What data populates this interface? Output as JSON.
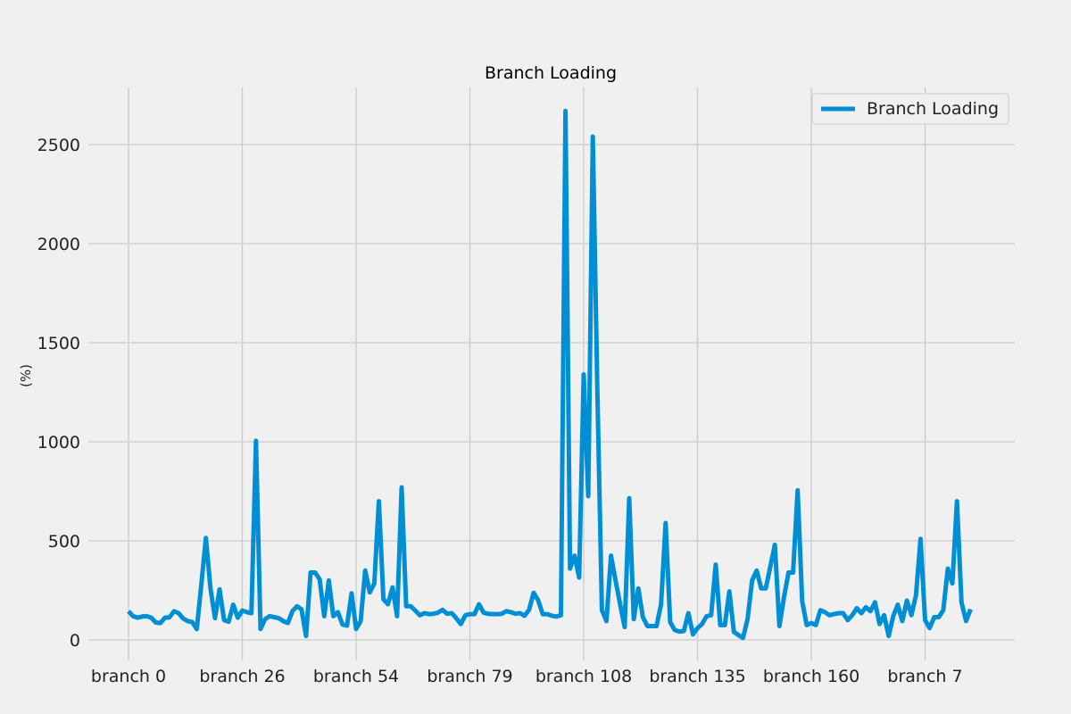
{
  "chart_data": {
    "type": "line",
    "title": "Branch Loading",
    "xlabel": "",
    "ylabel": "(%)",
    "ylim": [
      -100,
      2800
    ],
    "yticks": [
      0,
      500,
      1000,
      1500,
      2000,
      2500
    ],
    "xticks": [
      {
        "index": 0,
        "label": "branch 0"
      },
      {
        "index": 25,
        "label": "branch 26"
      },
      {
        "index": 50,
        "label": "branch 54"
      },
      {
        "index": 75,
        "label": "branch 79"
      },
      {
        "index": 100,
        "label": "branch 108"
      },
      {
        "index": 125,
        "label": "branch 135"
      },
      {
        "index": 150,
        "label": "branch 160"
      },
      {
        "index": 175,
        "label": "branch 7"
      }
    ],
    "grid": true,
    "legend_position": "top-right",
    "series": [
      {
        "name": "Branch Loading",
        "color": "#008fd5",
        "values": [
          145,
          120,
          112,
          118,
          120,
          112,
          88,
          85,
          112,
          114,
          145,
          135,
          108,
          95,
          90,
          55,
          280,
          515,
          260,
          110,
          255,
          100,
          92,
          178,
          112,
          148,
          140,
          135,
          1005,
          55,
          105,
          120,
          115,
          110,
          95,
          85,
          145,
          170,
          155,
          20,
          340,
          340,
          305,
          120,
          300,
          120,
          140,
          78,
          72,
          235,
          55,
          95,
          350,
          240,
          285,
          700,
          205,
          180,
          265,
          120,
          770,
          170,
          170,
          148,
          125,
          135,
          130,
          132,
          138,
          152,
          132,
          135,
          110,
          80,
          125,
          130,
          130,
          180,
          138,
          132,
          130,
          130,
          132,
          145,
          140,
          132,
          135,
          122,
          152,
          238,
          200,
          130,
          130,
          122,
          118,
          125,
          2670,
          360,
          425,
          315,
          1340,
          725,
          2540,
          1260,
          150,
          95,
          425,
          300,
          180,
          65,
          715,
          105,
          260,
          115,
          70,
          70,
          70,
          180,
          590,
          90,
          50,
          42,
          45,
          135,
          28,
          60,
          80,
          120,
          125,
          380,
          75,
          75,
          245,
          40,
          25,
          10,
          105,
          300,
          350,
          260,
          260,
          370,
          480,
          70,
          215,
          340,
          340,
          755,
          195,
          75,
          85,
          75,
          150,
          140,
          125,
          130,
          135,
          135,
          100,
          125,
          160,
          135,
          165,
          145,
          190,
          80,
          125,
          20,
          120,
          178,
          95,
          198,
          125,
          225,
          510,
          100,
          60,
          115,
          115,
          150,
          360,
          285,
          700,
          190,
          95,
          155
        ]
      }
    ]
  }
}
